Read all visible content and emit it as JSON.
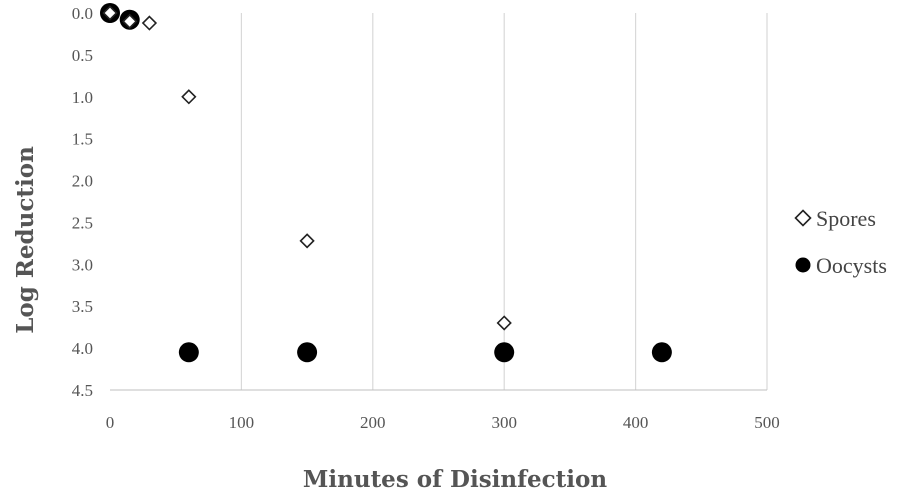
{
  "chart_data": {
    "type": "scatter",
    "xlabel": "Minutes of Disinfection",
    "ylabel": "Log Reduction",
    "xlim": [
      0,
      500
    ],
    "ylim": [
      0.0,
      4.5
    ],
    "y_inverted": true,
    "x_ticks": [
      0,
      100,
      200,
      300,
      400,
      500
    ],
    "x_tick_labels": [
      "0",
      "100",
      "200",
      "300",
      "400",
      "500"
    ],
    "y_ticks": [
      0.0,
      0.5,
      1.0,
      1.5,
      2.0,
      2.5,
      3.0,
      3.5,
      4.0,
      4.5
    ],
    "y_tick_labels": [
      "0.0",
      "0.5",
      "1.0",
      "1.5",
      "2.0",
      "2.5",
      "3.0",
      "3.5",
      "4.0",
      "4.5"
    ],
    "grid": "vertical",
    "legend_position": "right",
    "series": [
      {
        "name": "Spores",
        "marker": "diamond-open",
        "color": "#222222",
        "points": [
          [
            0,
            0.0
          ],
          [
            15,
            0.1
          ],
          [
            30,
            0.12
          ],
          [
            60,
            1.0
          ],
          [
            150,
            2.72
          ],
          [
            300,
            3.7
          ]
        ]
      },
      {
        "name": "Oocysts",
        "marker": "circle-filled",
        "color": "#000000",
        "points": [
          [
            0,
            0.0
          ],
          [
            15,
            0.08
          ],
          [
            60,
            4.05
          ],
          [
            150,
            4.05
          ],
          [
            300,
            4.05
          ],
          [
            420,
            4.05
          ]
        ]
      }
    ]
  }
}
